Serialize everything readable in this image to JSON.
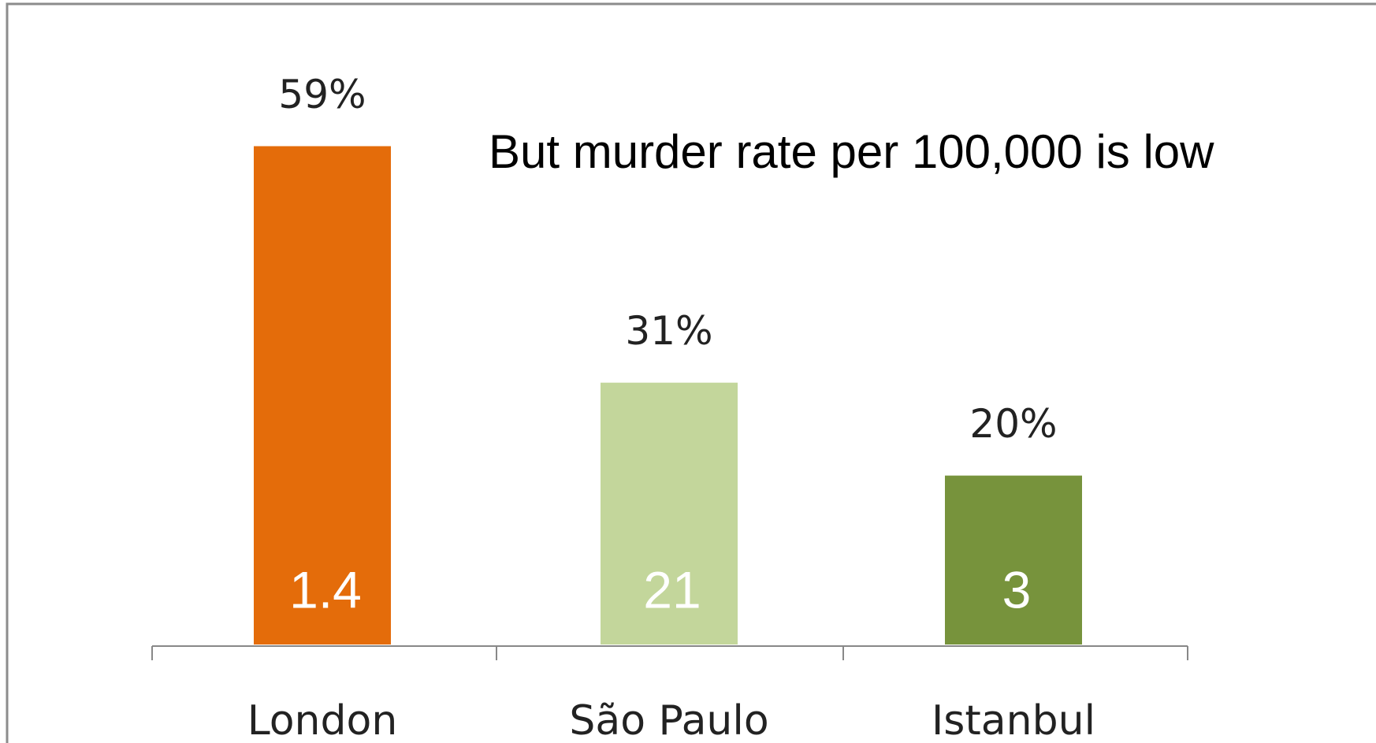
{
  "chart_data": {
    "type": "bar",
    "annotation": "But murder rate per 100,000 is low",
    "categories": [
      "London",
      "São Paulo",
      "Istanbul"
    ],
    "values": [
      59,
      31,
      20
    ],
    "value_labels": [
      "59%",
      "31%",
      "20%"
    ],
    "colors": [
      "#e46c0a",
      "#c3d69b",
      "#77933c"
    ],
    "murder_rates": [
      1.4,
      21,
      3
    ]
  }
}
